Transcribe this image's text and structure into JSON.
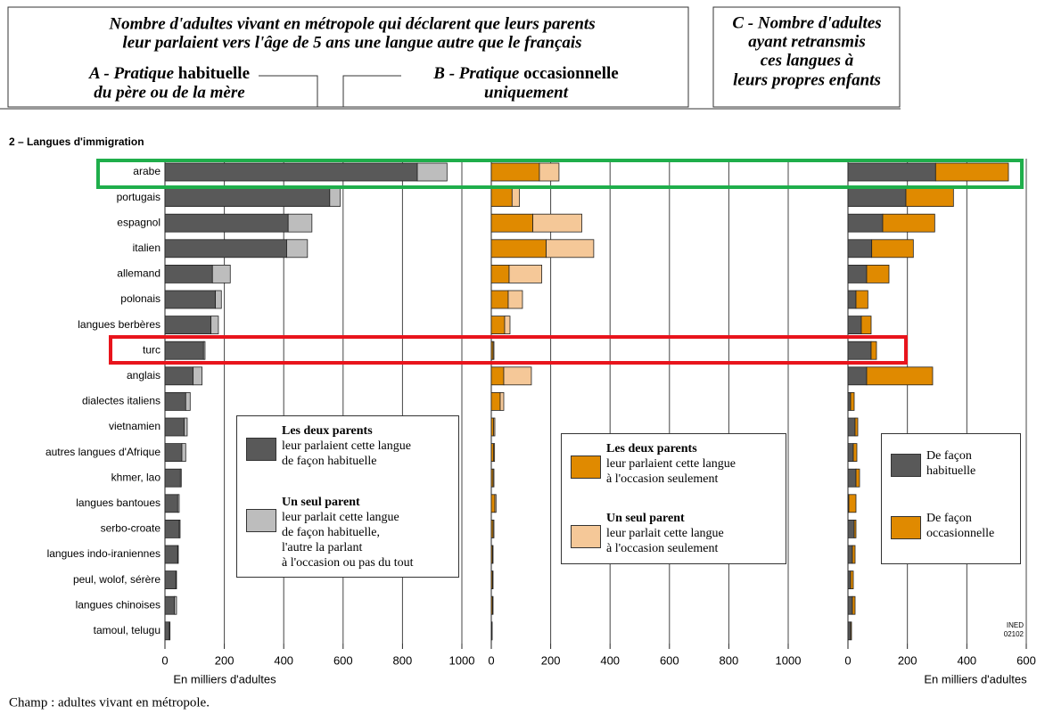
{
  "header": {
    "title_lines": [
      "Nombre d'adultes vivant en métropole qui déclarent que leurs parents",
      "leur parlaient vers l'âge de 5 ans une langue autre que le français"
    ]
  },
  "section": "2 – Langues d'immigration",
  "chart_data": [
    {
      "type": "bar",
      "orientation": "horizontal",
      "stacked": true,
      "title": [
        "A - Pratique",
        "habituelle"
      ],
      "subtitle": "du père ou de la mère",
      "xlabel": "En milliers d'adultes",
      "categories": [
        "arabe",
        "portugais",
        "espagnol",
        "italien",
        "allemand",
        "polonais",
        "langues berbères",
        "turc",
        "anglais",
        "dialectes italiens",
        "vietnamien",
        "autres langues d'Afrique",
        "khmer, lao",
        "langues bantoues",
        "serbo-croate",
        "langues indo-iraniennes",
        "peul, wolof, sérère",
        "langues chinoises",
        "tamoul, telugu"
      ],
      "xlim": [
        0,
        1000
      ],
      "xticks": [
        0,
        200,
        400,
        600,
        800,
        1000
      ],
      "grid": true,
      "series": [
        {
          "name": "Les deux parents",
          "description": [
            "leur parlaient cette langue",
            "de façon habituelle"
          ],
          "color": "#595959",
          "values": [
            850,
            555,
            415,
            410,
            160,
            170,
            155,
            130,
            95,
            70,
            65,
            57,
            52,
            43,
            48,
            43,
            37,
            32,
            15
          ]
        },
        {
          "name": "Un seul parent",
          "description": [
            "leur parlait cette langue",
            "de façon habituelle,",
            "l'autre la parlant",
            "à l'occasion ou pas du tout"
          ],
          "color": "#bdbdbd",
          "values": [
            100,
            35,
            80,
            70,
            60,
            20,
            25,
            5,
            30,
            15,
            10,
            13,
            3,
            5,
            3,
            2,
            2,
            7,
            2
          ]
        }
      ]
    },
    {
      "type": "bar",
      "orientation": "horizontal",
      "stacked": true,
      "title": [
        "B - Pratique",
        "occasionnelle"
      ],
      "subtitle": "uniquement",
      "xlim": [
        0,
        1000
      ],
      "xticks": [
        0,
        200,
        400,
        600,
        800,
        1000
      ],
      "grid": true,
      "series": [
        {
          "name": "Les deux parents",
          "description": [
            "leur parlaient cette langue",
            "à l'occasion seulement"
          ],
          "color": "#e08a00",
          "values": [
            162,
            70,
            140,
            185,
            60,
            57,
            45,
            6,
            42,
            30,
            8,
            8,
            6,
            12,
            6,
            4,
            4,
            4,
            2
          ]
        },
        {
          "name": "Un seul parent",
          "description": [
            "leur parlait cette langue",
            "à l'occasion seulement"
          ],
          "color": "#f5c898",
          "values": [
            66,
            25,
            165,
            160,
            110,
            48,
            18,
            3,
            93,
            12,
            4,
            3,
            3,
            4,
            3,
            2,
            2,
            2,
            1
          ]
        }
      ]
    },
    {
      "type": "bar",
      "orientation": "horizontal",
      "stacked": true,
      "title": [
        "C - Nombre d'adultes",
        "ayant retransmis",
        "ces langues à",
        "leurs propres enfants"
      ],
      "xlabel": "En milliers d'adultes",
      "xlim": [
        0,
        600
      ],
      "xticks": [
        0,
        200,
        400,
        600
      ],
      "grid": true,
      "series": [
        {
          "name": "De façon habituelle",
          "color": "#595959",
          "values": [
            295,
            195,
            117,
            80,
            63,
            27,
            45,
            78,
            63,
            9,
            24,
            18,
            27,
            3,
            21,
            15,
            9,
            15,
            9
          ]
        },
        {
          "name": "De façon occasionnelle",
          "color": "#e08a00",
          "values": [
            245,
            160,
            175,
            140,
            75,
            40,
            33,
            18,
            222,
            12,
            9,
            12,
            12,
            24,
            6,
            9,
            9,
            9,
            3
          ]
        }
      ]
    }
  ],
  "credit": [
    "INED",
    "02102"
  ],
  "note": "Champ : adultes vivant en métropole."
}
